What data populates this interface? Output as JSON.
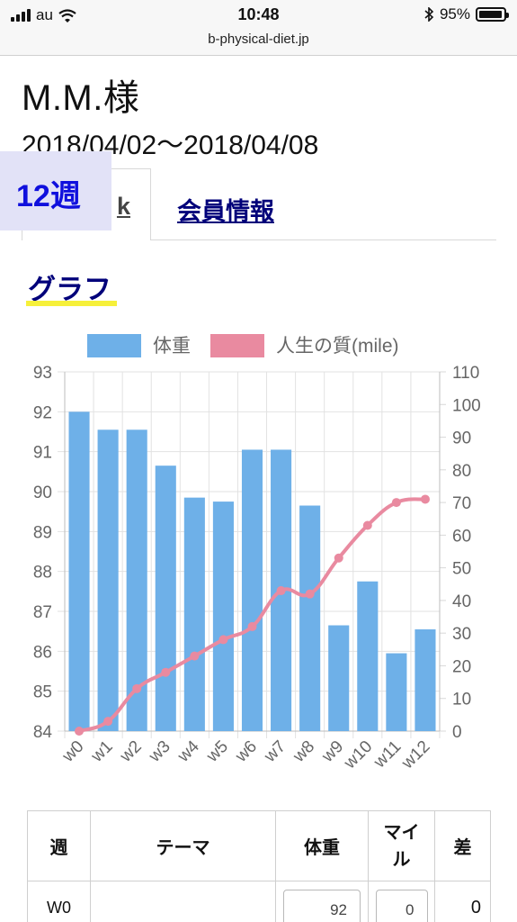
{
  "status_bar": {
    "carrier": "au",
    "time": "10:48",
    "battery": "95%",
    "battery_level": 0.95
  },
  "url": "b-physical-diet.jp",
  "user": {
    "name": "M.M.様",
    "date_range": "2018/04/02〜2018/04/08"
  },
  "week_badge": "12週",
  "tabs": {
    "active_fragment": "k",
    "member_info": "会員情報"
  },
  "section_title": "グラフ",
  "colors": {
    "weight": "#6eb0e8",
    "quality": "#e98aa0",
    "badge_bg": "#e2e2f7",
    "badge_text": "#1010dd",
    "link": "#00007a",
    "underline": "#f6f03a"
  },
  "chart_data": {
    "type": "bar",
    "categories": [
      "w0",
      "w1",
      "w2",
      "w3",
      "w4",
      "w5",
      "w6",
      "w7",
      "w8",
      "w9",
      "w10",
      "w11",
      "w12"
    ],
    "series": [
      {
        "name": "体重",
        "type": "bar",
        "axis": "left",
        "values": [
          92,
          91.55,
          91.55,
          90.65,
          89.85,
          89.75,
          91.05,
          91.05,
          89.65,
          86.65,
          87.75,
          85.95,
          86.55
        ]
      },
      {
        "name": "人生の質(mile)",
        "type": "line",
        "axis": "right",
        "values": [
          0,
          3,
          13,
          18,
          23,
          28,
          32,
          43,
          42,
          53,
          63,
          70,
          71
        ]
      }
    ],
    "y_left": {
      "min": 84,
      "max": 93,
      "ticks": [
        84,
        85,
        86,
        87,
        88,
        89,
        90,
        91,
        92,
        93
      ]
    },
    "y_right": {
      "min": 0,
      "max": 110,
      "ticks": [
        0,
        10,
        20,
        30,
        40,
        50,
        60,
        70,
        80,
        90,
        100,
        110
      ]
    },
    "legend_position": "top",
    "grid": true
  },
  "table": {
    "headers": [
      "週",
      "テーマ",
      "体重",
      "マイル",
      "差"
    ],
    "rows": [
      {
        "week": "W0",
        "theme": "",
        "weight": "92",
        "mile": "0",
        "diff": "0"
      }
    ]
  }
}
